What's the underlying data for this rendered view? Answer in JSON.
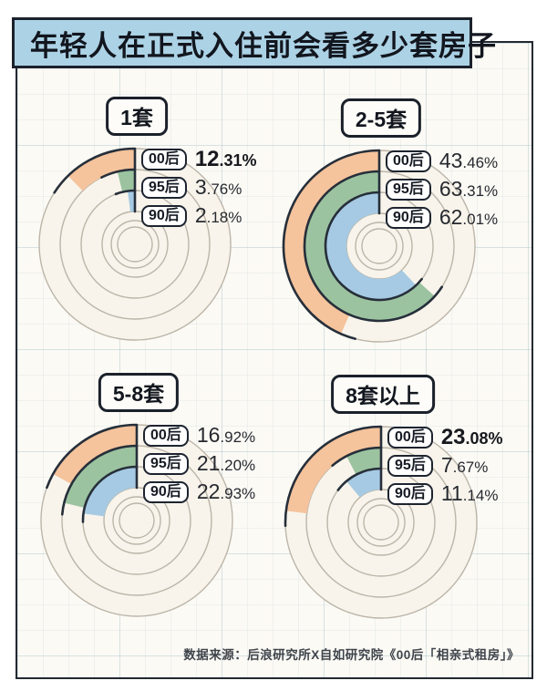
{
  "title": "年轻人在正式入住前会看多少套房子",
  "source": "数据来源：后浪研究所X自如研究院《00后「相亲式租房」》",
  "colors": {
    "band_00hou": "#F5C39C",
    "band_95hou": "#9CC3A0",
    "band_90hou": "#A6CAE3",
    "outline": "#262f3a",
    "guide": "#BCB5A9",
    "disc_fill": "#F8F4EB",
    "title_bar_bg": "#ACD2E5",
    "ink": "#12161e"
  },
  "chart_data": {
    "type": "bar",
    "variant": "concentric radial bars (donut rings), one ring per generation, start at 12 o'clock sweeping counterclockwise",
    "unit": "percent of respondents",
    "series_labels": [
      "00后",
      "95后",
      "90后"
    ],
    "ring_order": "00后 outer ring, 95后 middle ring, 90后 inner ring",
    "value_range": [
      0,
      100
    ],
    "groups": [
      {
        "label": "1套",
        "values": [
          12.31,
          3.76,
          2.18
        ],
        "display": [
          "12.31%",
          "3.76%",
          "2.18%"
        ],
        "emphasis": [
          true,
          false,
          false
        ]
      },
      {
        "label": "2-5套",
        "values": [
          43.46,
          63.31,
          62.01
        ],
        "display": [
          "43.46%",
          "63.31%",
          "62.01%"
        ],
        "emphasis": [
          false,
          false,
          false
        ]
      },
      {
        "label": "5-8套",
        "values": [
          16.92,
          21.2,
          22.93
        ],
        "display": [
          "16.92%",
          "21.20%",
          "22.93%"
        ],
        "emphasis": [
          false,
          false,
          false
        ]
      },
      {
        "label": "8套以上",
        "values": [
          23.08,
          7.67,
          11.14
        ],
        "display": [
          "23.08%",
          "7.67%",
          "11.14%"
        ],
        "emphasis": [
          true,
          false,
          false
        ]
      }
    ]
  }
}
